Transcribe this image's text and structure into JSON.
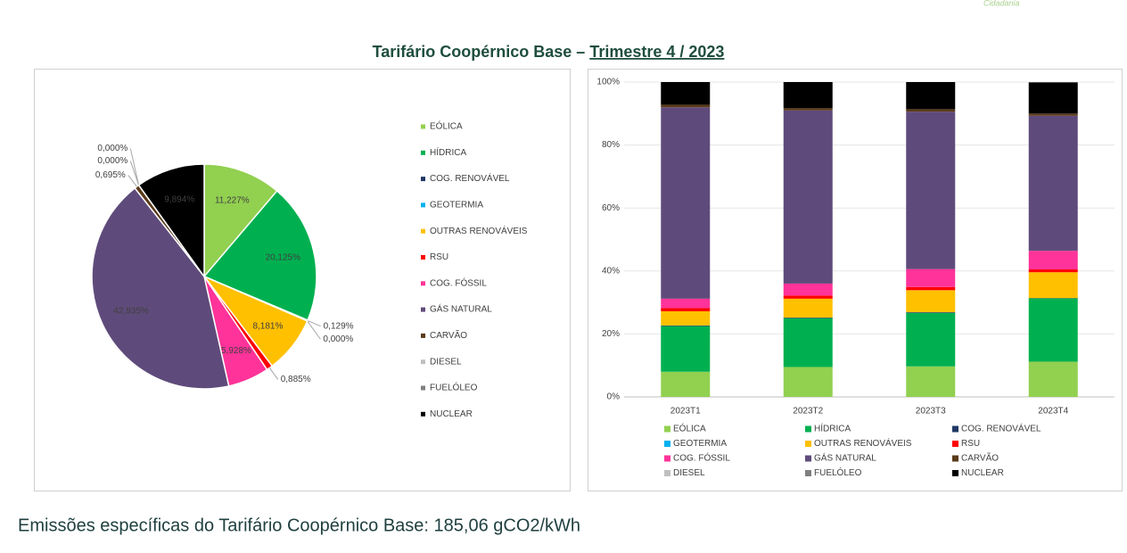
{
  "header": {
    "watermark": "Cidadania",
    "title_prefix": "Tarifário Coopérnico Base – ",
    "title_period": "Trimestre 4 / 2023"
  },
  "chart_data": [
    {
      "type": "pie",
      "categories": [
        "EÓLICA",
        "HÍDRICA",
        "COG. RENOVÁVEL",
        "GEOTERMIA",
        "OUTRAS RENOVÁVEIS",
        "RSU",
        "COG. FÓSSIL",
        "GÁS NATURAL",
        "CARVÃO",
        "DIESEL",
        "FUELÓLEO",
        "NUCLEAR"
      ],
      "values": [
        11.227,
        20.125,
        0.129,
        0.0,
        8.181,
        0.885,
        5.928,
        42.935,
        0.695,
        0.0,
        0.0,
        9.894
      ],
      "value_labels": [
        "11,227%",
        "20,125%",
        "0,129%",
        "0,000%",
        "8,181%",
        "0,885%",
        "5,928%",
        "42,935%",
        "0,695%",
        "0,000%",
        "0,000%",
        "9,894%"
      ],
      "colors": [
        "#92d050",
        "#00b050",
        "#1f3864",
        "#00b0f0",
        "#ffc000",
        "#ff0000",
        "#ff3399",
        "#5f4b7b",
        "#5a3a1a",
        "#bfbfbf",
        "#7f7f7f",
        "#000000"
      ],
      "legend": "right"
    },
    {
      "type": "stacked_bar",
      "categories": [
        "2023T1",
        "2023T2",
        "2023T3",
        "2023T4"
      ],
      "series": [
        {
          "name": "EÓLICA",
          "color": "#92d050",
          "values": [
            8,
            9.5,
            9.7,
            11.2
          ]
        },
        {
          "name": "HÍDRICA",
          "color": "#00b050",
          "values": [
            14.5,
            15.5,
            17,
            20.1
          ]
        },
        {
          "name": "COG. RENOVÁVEL",
          "color": "#1f3864",
          "values": [
            0.2,
            0.2,
            0.2,
            0.1
          ]
        },
        {
          "name": "GEOTERMIA",
          "color": "#00b0f0",
          "values": [
            0,
            0,
            0,
            0
          ]
        },
        {
          "name": "OUTRAS RENOVÁVEIS",
          "color": "#ffc000",
          "values": [
            4.5,
            6,
            7,
            8.2
          ]
        },
        {
          "name": "RSU",
          "color": "#ff0000",
          "values": [
            1,
            1,
            1,
            0.9
          ]
        },
        {
          "name": "COG. FÓSSIL",
          "color": "#ff3399",
          "values": [
            3,
            3.8,
            5.7,
            5.9
          ]
        },
        {
          "name": "GÁS NATURAL",
          "color": "#5f4b7b",
          "values": [
            60.8,
            55,
            50,
            42.9
          ]
        },
        {
          "name": "CARVÃO",
          "color": "#5a3a1a",
          "values": [
            0.8,
            0.7,
            0.8,
            0.7
          ]
        },
        {
          "name": "DIESEL",
          "color": "#bfbfbf",
          "values": [
            0,
            0,
            0,
            0
          ]
        },
        {
          "name": "FUELÓLEO",
          "color": "#7f7f7f",
          "values": [
            0,
            0,
            0,
            0
          ]
        },
        {
          "name": "NUCLEAR",
          "color": "#000000",
          "values": [
            7.2,
            8.3,
            8.6,
            9.9
          ]
        }
      ],
      "ylim": [
        0,
        100
      ],
      "yticks": [
        {
          "value": 0,
          "label": "0%"
        },
        {
          "value": 20,
          "label": "20%"
        },
        {
          "value": 40,
          "label": "40%"
        },
        {
          "value": 60,
          "label": "60%"
        },
        {
          "value": 80,
          "label": "80%"
        },
        {
          "value": 100,
          "label": "100%"
        }
      ],
      "grid": true,
      "legend": "bottom"
    }
  ],
  "footer": "Emissões específicas do Tarifário Coopérnico Base: 185,06 gCO2/kWh"
}
